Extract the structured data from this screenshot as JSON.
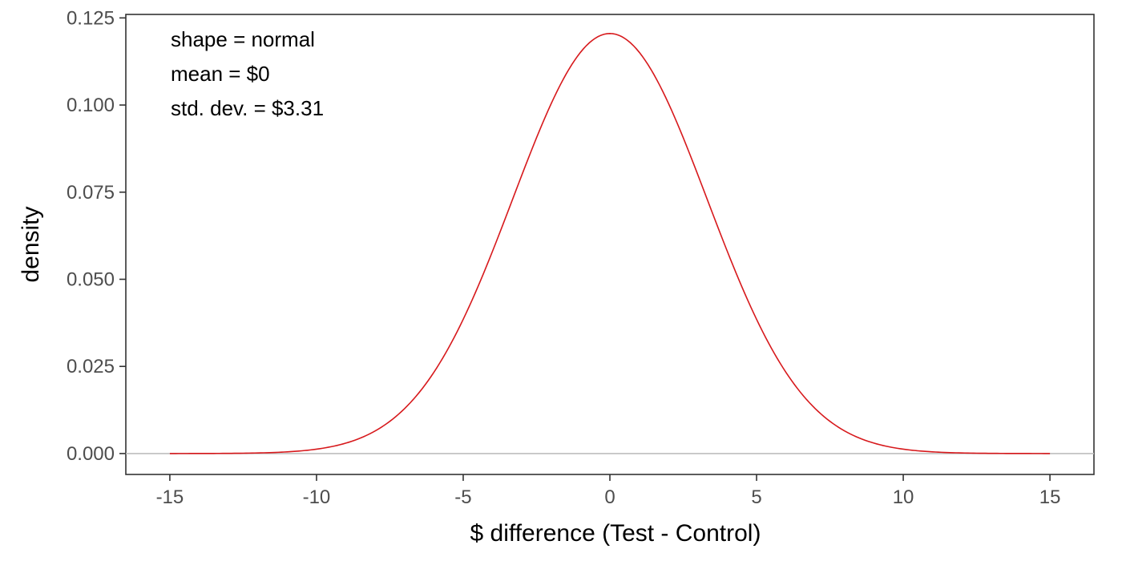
{
  "chart_data": {
    "type": "line",
    "xlabel": "$ difference (Test - Control)",
    "ylabel": "density",
    "xlim": [
      -16.5,
      16.5
    ],
    "ylim": [
      -0.006,
      0.126
    ],
    "x_ticks": [
      -15,
      -10,
      -5,
      0,
      5,
      10,
      15
    ],
    "x_tick_labels": [
      "-15",
      "-10",
      "-5",
      "0",
      "5",
      "10",
      "15"
    ],
    "y_ticks": [
      0,
      0.025,
      0.05,
      0.075,
      0.1,
      0.125
    ],
    "y_tick_labels": [
      "0.000",
      "0.025",
      "0.050",
      "0.075",
      "0.100",
      "0.125"
    ],
    "grid": false,
    "reference_line": {
      "y": 0,
      "color": "#bebebe"
    },
    "annotations": [
      "shape = normal",
      "mean = $0",
      "std. dev. = $3.31"
    ],
    "series": [
      {
        "color": "#d7191c",
        "distribution": "normal",
        "mean": 0,
        "sd": 3.31,
        "x": [
          -15,
          -14,
          -13,
          -12,
          -11,
          -10,
          -9,
          -8,
          -7,
          -6,
          -5,
          -4,
          -3,
          -2,
          -1,
          0,
          1,
          2,
          3,
          4,
          5,
          6,
          7,
          8,
          9,
          10,
          11,
          12,
          13,
          14,
          15
        ],
        "y": [
          0.0,
          0.0,
          0.0001,
          0.0002,
          0.0005,
          0.0013,
          0.003,
          0.0065,
          0.0124,
          0.0233,
          0.0384,
          0.0582,
          0.0804,
          0.1003,
          0.1148,
          0.1205,
          0.1148,
          0.1003,
          0.0804,
          0.0582,
          0.0384,
          0.0233,
          0.0124,
          0.0065,
          0.003,
          0.0013,
          0.0005,
          0.0002,
          0.0001,
          0.0,
          0.0
        ]
      }
    ]
  }
}
